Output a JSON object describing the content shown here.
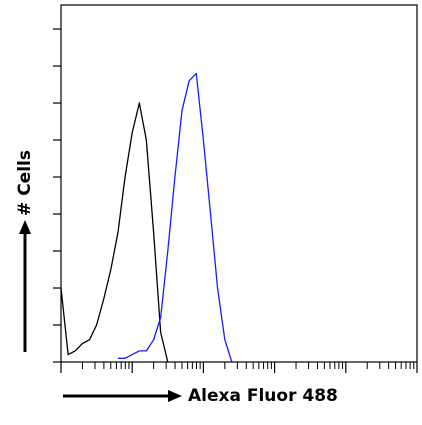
{
  "chart_data": {
    "type": "line",
    "xlabel": "Alexa Fluor 488",
    "ylabel": "# Cells",
    "x_log": true,
    "xlim": [
      1,
      100000
    ],
    "ylim": [
      0,
      96.5
    ],
    "xticks": [
      1,
      10,
      100,
      1000,
      10000,
      100000
    ],
    "x_minor_ticks": [
      2,
      3,
      4,
      5,
      6,
      7,
      8,
      9,
      20,
      30,
      40,
      50,
      60,
      70,
      80,
      90,
      200,
      300,
      400,
      500,
      600,
      700,
      800,
      900,
      2000,
      3000,
      4000,
      5000,
      6000,
      7000,
      8000,
      9000,
      20000,
      30000,
      40000,
      50000,
      60000,
      70000,
      80000,
      90000
    ],
    "yticks": [
      0,
      10,
      20,
      30,
      40,
      50,
      60,
      70,
      80,
      90
    ],
    "x": [
      1,
      1.26,
      1.58,
      2,
      2.51,
      3.16,
      3.98,
      5.01,
      6.31,
      7.94,
      10,
      12.6,
      15.8,
      20,
      25.1,
      31.6,
      39.8,
      50.1,
      63.1,
      79.4,
      100,
      126,
      158,
      200,
      251,
      316
    ],
    "series": [
      {
        "color": "#000000",
        "values": [
          20,
          2,
          3,
          5,
          6,
          10,
          17,
          25,
          35,
          50,
          62,
          70,
          60,
          35,
          8,
          0,
          null,
          null,
          null,
          null,
          null,
          null,
          null,
          null,
          null,
          null
        ]
      },
      {
        "color": "#1a1aff",
        "values": [
          null,
          null,
          null,
          null,
          null,
          null,
          null,
          null,
          1,
          1,
          2,
          3,
          3,
          6,
          12,
          30,
          50,
          68,
          76,
          78,
          60,
          40,
          20,
          6,
          0,
          null
        ]
      }
    ]
  }
}
